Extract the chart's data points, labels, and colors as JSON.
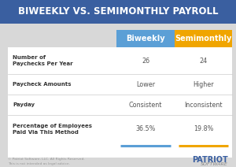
{
  "title": "BIWEEKLY VS. SEMIMONTHLY PAYROLL",
  "title_bg": "#3a5fa0",
  "title_color": "#ffffff",
  "bg_color": "#d8d8d8",
  "col1_header": "Biweekly",
  "col2_header": "Semimonthly",
  "col1_header_bg": "#5b9fd6",
  "col2_header_bg": "#f0a500",
  "header_color": "#ffffff",
  "row_labels": [
    "Number of\nPaychecks Per Year",
    "Paycheck Amounts",
    "Payday",
    "Percentage of Employees\nPaid Via This Method"
  ],
  "col1_values": [
    "26",
    "Lower",
    "Consistent",
    "36.5%"
  ],
  "col2_values": [
    "24",
    "Higher",
    "Inconsistent",
    "19.8%"
  ],
  "white_bg": "#ffffff",
  "label_color": "#333333",
  "value_color": "#555555",
  "divider_color": "#cccccc",
  "footer_text": "© Patriot Software, LLC. All Rights Reserved.\nThis is not intended as legal advice.",
  "col1_underline": "#5b9fd6",
  "col2_underline": "#f0a500",
  "patriot_color": "#3a5fa0"
}
